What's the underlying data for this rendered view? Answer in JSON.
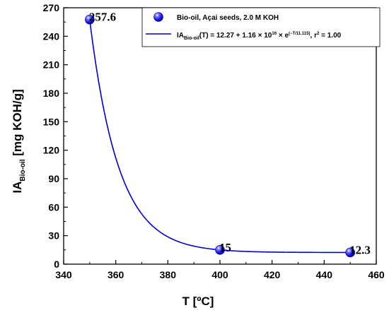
{
  "chart_data": {
    "type": "scatter",
    "xlabel": "T [ºC]",
    "ylabel": {
      "main": "IA",
      "subscript": "Bio-oil",
      "unit": " [mg KOH/g]"
    },
    "xlim": [
      340,
      460
    ],
    "ylim": [
      0,
      270
    ],
    "xticks": [
      340,
      360,
      380,
      400,
      420,
      440,
      460
    ],
    "yticks": [
      0,
      30,
      60,
      90,
      120,
      150,
      180,
      210,
      240,
      270
    ],
    "series": [
      {
        "name": "Bio-oil, Açai seeds, 2.0 M KOH",
        "type": "scatter",
        "x": [
          350,
          400,
          450
        ],
        "y": [
          257.6,
          15,
          12.3
        ],
        "labels": [
          "257.6",
          "15",
          "12.3"
        ],
        "color": "#1a1aff"
      },
      {
        "name": "IA_Bio-oil(T) = 12.27 + 1.16 × 10^16 × e^(−T/11.115), r² = 1.00",
        "type": "fit",
        "model": {
          "a": 12.27,
          "b": 1.16e+16,
          "c": 11.115
        },
        "color": "#0000cc"
      }
    ],
    "legend": {
      "position": "top-right",
      "scatter_label": "Bio-oil, Açai seeds, 2.0 M KOH",
      "fit_label": {
        "prefix": "IA",
        "sub": "Bio-oil",
        "after_sub": "(T) = 12.27 + 1.16 × 10",
        "sup1": "16",
        "mid": " × e",
        "sup2": "(−T/11.115)",
        "suffix": ", r",
        "sup3": "2",
        "end": " = 1.00"
      }
    }
  }
}
